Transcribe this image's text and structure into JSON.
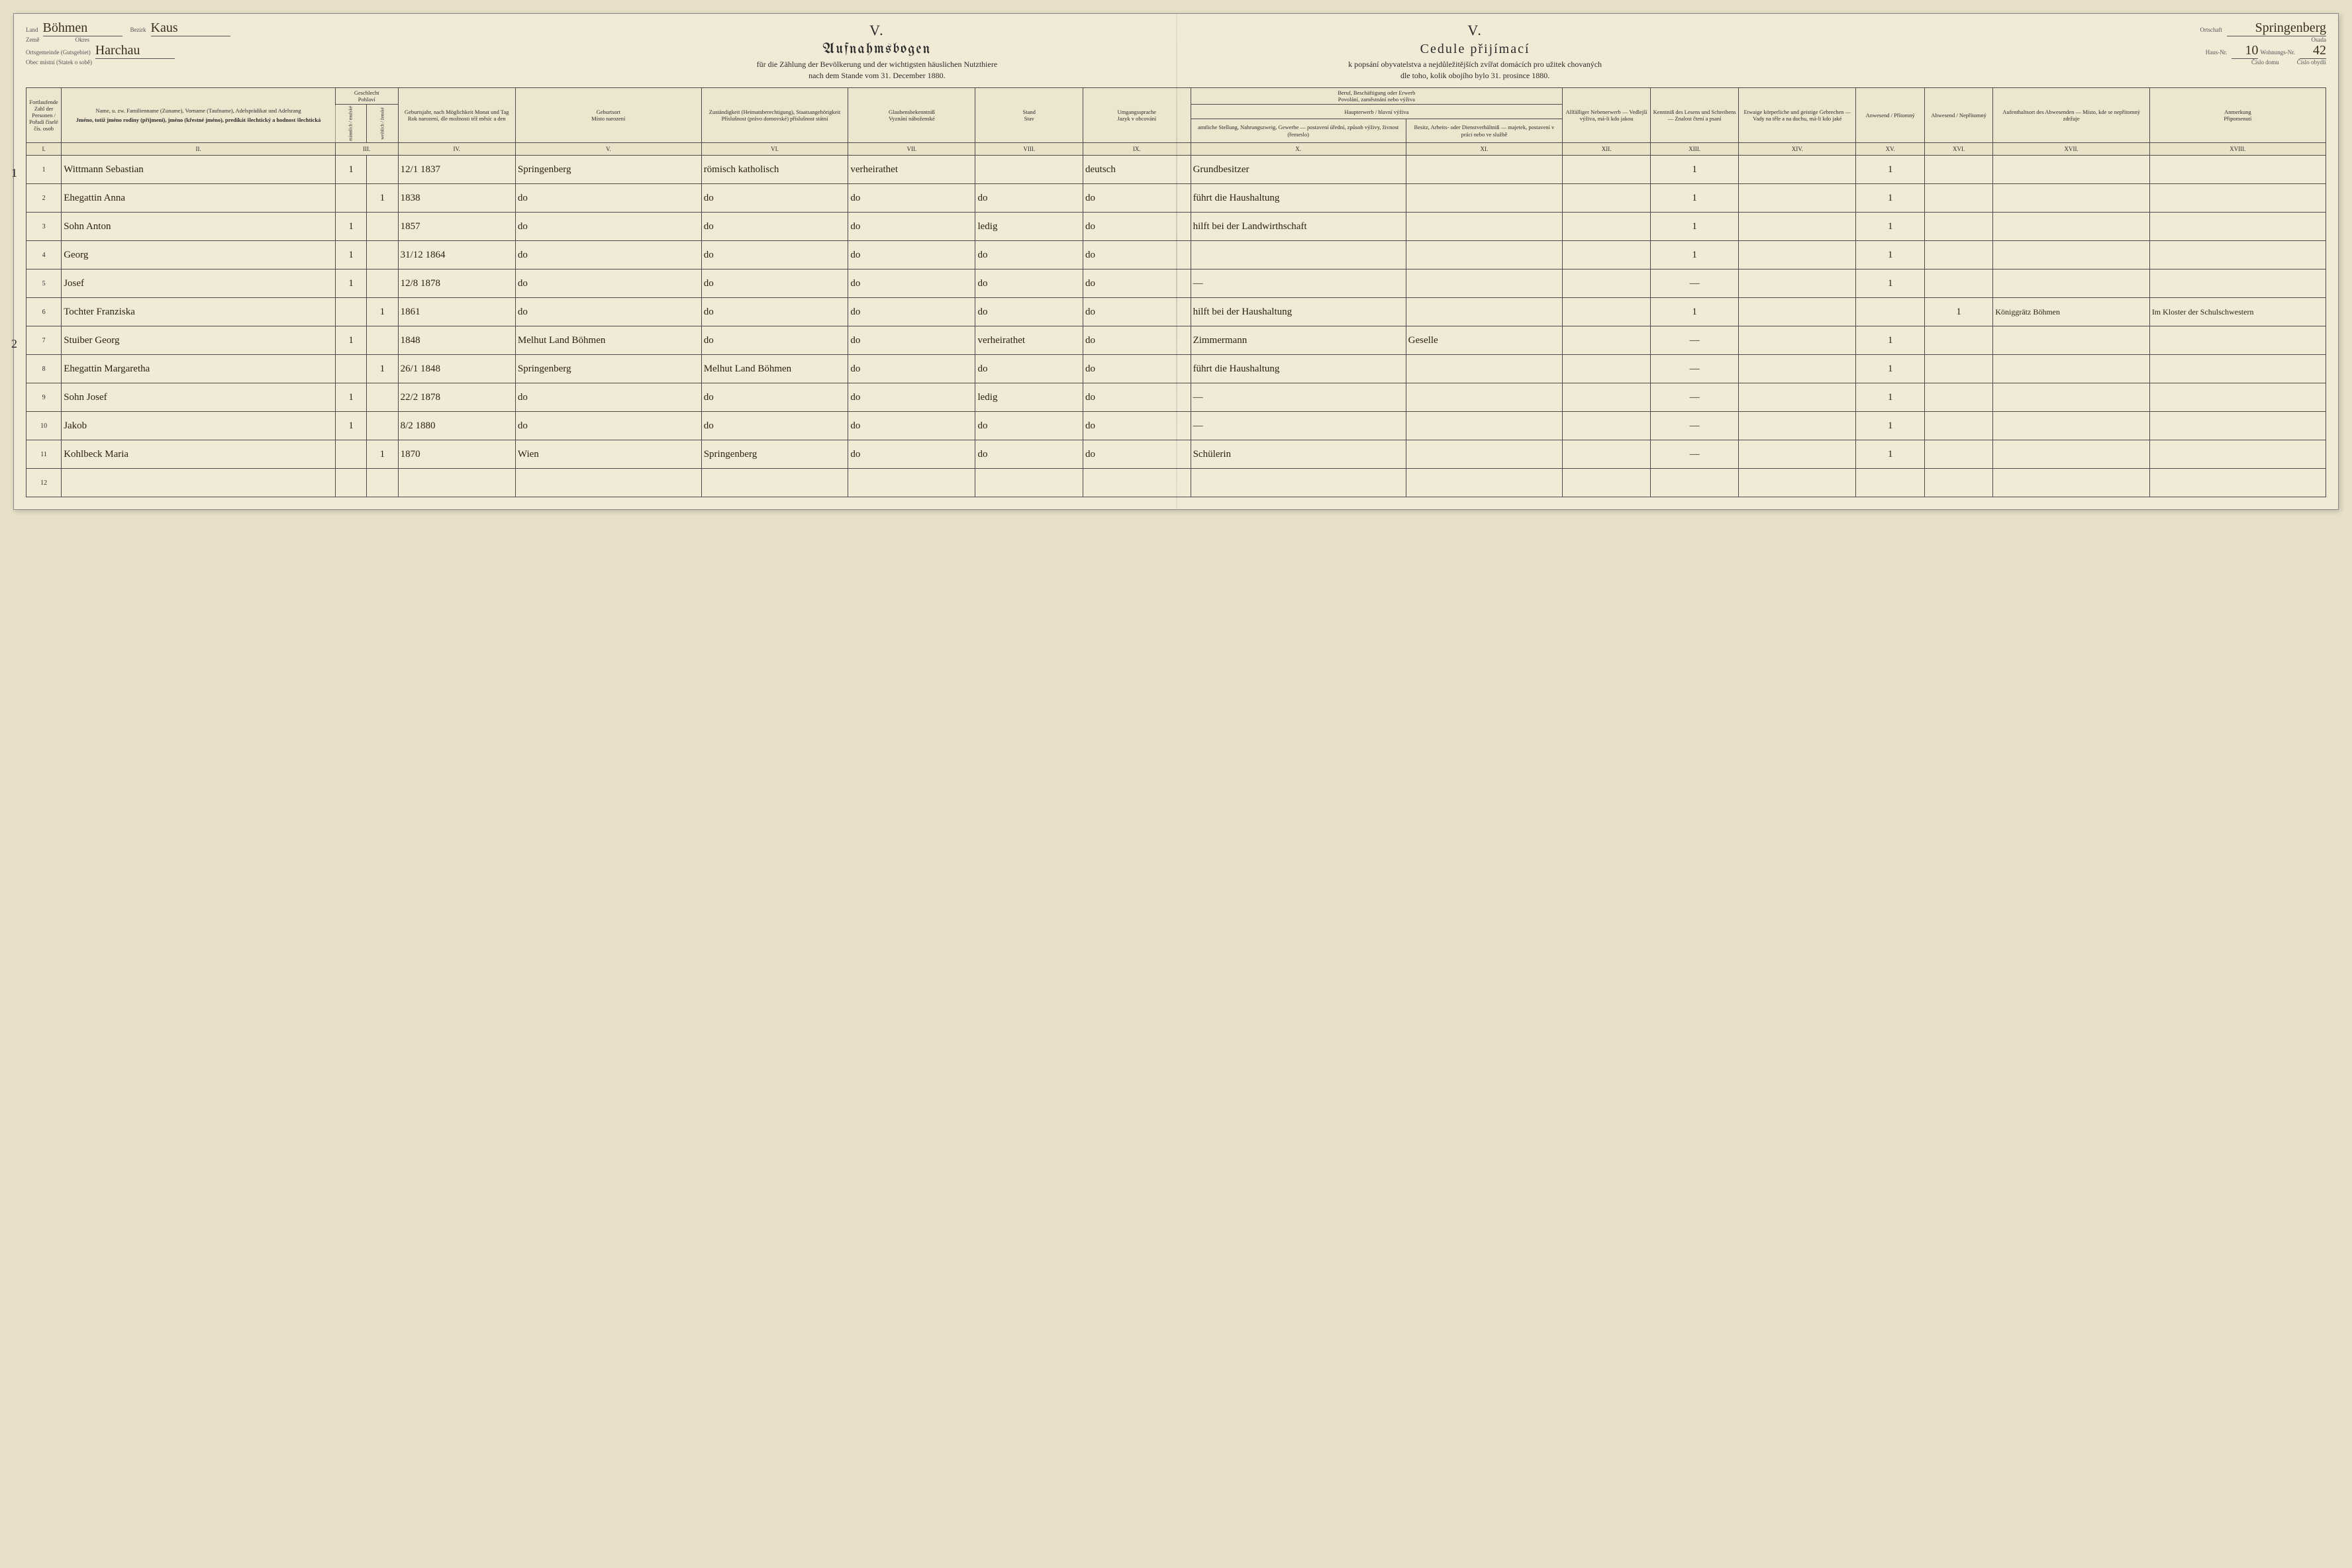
{
  "header": {
    "land_label_de": "Land",
    "land_label_cz": "Země",
    "land_value": "Böhmen",
    "bezirk_label_de": "Bezirk",
    "bezirk_label_cz": "Okres",
    "bezirk_value": "Kaus",
    "ortsgemeinde_label_de": "Ortsgemeinde (Gutsgebiet)",
    "ortsgemeinde_label_cz": "Obec místní (Statek o sobě)",
    "ortsgemeinde_value": "Harchau",
    "ortschaft_label_de": "Ortschaft",
    "ortschaft_label_cz": "Osada",
    "ortschaft_value": "Springenberg",
    "hausnr_label_de": "Haus-Nr.",
    "hausnr_label_cz": "Číslo domu",
    "hausnr_value": "10",
    "wohnnr_label_de": "Wohnungs-Nr.",
    "wohnnr_label_cz": "Číslo obydlí",
    "wohnnr_value": "42",
    "roman": "V.",
    "title_de": "Aufnahmsbogen",
    "title_cz": "Cedule přijímací",
    "subtitle_de": "für die Zählung der Bevölkerung und der wichtigsten häuslichen Nutzthiere",
    "subtitle_cz": "k popsání obyvatelstva a nejdůležitějších zvířat domácích pro užitek chovaných",
    "dateline_de": "nach dem Stande vom 31. December 1880.",
    "dateline_cz": "dle toho, kolik obojího bylo 31. prosince 1880."
  },
  "columns": {
    "head1": "Fortlaufende Zahl der Personen / Pořadí číselé čís. osob",
    "head2_de": "Name, u. zw. Familienname (Zuname), Vorname (Taufname), Adelsprädikat und Adelsrang",
    "head2_cz": "Jméno, totiž jméno rodiny (příjmení), jméno (křestné jméno), predikát šlechtický a hodnost šlechtická",
    "head3_de": "Geschlecht",
    "head3_cz": "Pohlaví",
    "head3m": "männlich / mužské",
    "head3f": "weiblich / ženské",
    "head4_de": "Geburtsjahr, nach Möglichkeit Monat und Tag",
    "head4_cz": "Rok narození, dle možnosti též měsíc a den",
    "head5_de": "Geburtsort",
    "head5_cz": "Místo narození",
    "head6_de": "Zuständigkeit (Heimatsberechtigung), Staatsangehörigkeit",
    "head6_cz": "Příslušnost (právo domovské) příslušnost státní",
    "head7_de": "Glaubensbekenntniß",
    "head7_cz": "Vyznání náboženské",
    "head8_de": "Stand",
    "head8_cz": "Stav",
    "head9_de": "Umgangssprache",
    "head9_cz": "Jazyk v obcování",
    "head10_group_de": "Beruf, Beschäftigung oder Erwerb",
    "head10_group_cz": "Povolání, zaměstnání nebo výživa",
    "head10a_de": "Haupterwerb / hlavní výživa",
    "head10_de": "amtliche Stellung, Nahrungszweig, Gewerbe — postavení úřední, způsob výživy, živnost (řemeslo)",
    "head11_de": "Besitz, Arbeits- oder Dienstverhältniß — majetek, postavení v práci nebo ve službě",
    "head12_de": "Allfälliger Nebenerwerb — Vedlejší výživa, má-li kdo jakou",
    "head13_de": "Kenntniß des Lesens und Schreibens — Znalost čtení a psaní",
    "head14_de": "Etwaige körperliche und geistige Gebrechen — Vady na těle a na duchu, má-li kdo jaké",
    "head15_de": "Anwesend / Přítomný",
    "head16_de": "Abwesend / Nepřítomný",
    "head17_de": "Aufenthaltsort des Abwesenden — Místo, kde se nepřítomný zdržuje",
    "head18_de": "Anmerkung",
    "head18_cz": "Připomenutí",
    "nums": [
      "I.",
      "II.",
      "III.",
      "IV.",
      "V.",
      "VI.",
      "VII.",
      "VIII.",
      "IX.",
      "X.",
      "XI.",
      "XII.",
      "XIII.",
      "XIV.",
      "XV.",
      "XVI.",
      "XVII.",
      "XVIII."
    ]
  },
  "rows": [
    {
      "n": "1",
      "hh": "1",
      "name": "Wittmann Sebastian",
      "m": "1",
      "f": "",
      "birth": "12/1 1837",
      "place": "Springenberg",
      "zust": "römisch katholisch",
      "rel": "verheirathet",
      "stand": "",
      "lang": "deutsch",
      "occ": "Grundbesitzer",
      "pos": "",
      "lit": "1",
      "pres": "1",
      "abs": "",
      "where": "",
      "note": ""
    },
    {
      "n": "2",
      "hh": "",
      "name": "Ehegattin Anna",
      "m": "",
      "f": "1",
      "birth": "1838",
      "place": "do",
      "zust": "do",
      "rel": "do",
      "stand": "do",
      "lang": "do",
      "occ": "führt die Haushaltung",
      "pos": "",
      "lit": "1",
      "pres": "1",
      "abs": "",
      "where": "",
      "note": ""
    },
    {
      "n": "3",
      "hh": "",
      "name": "Sohn Anton",
      "m": "1",
      "f": "",
      "birth": "1857",
      "place": "do",
      "zust": "do",
      "rel": "do",
      "stand": "ledig",
      "lang": "do",
      "occ": "hilft bei der Landwirthschaft",
      "pos": "",
      "lit": "1",
      "pres": "1",
      "abs": "",
      "where": "",
      "note": ""
    },
    {
      "n": "4",
      "hh": "",
      "name": "Georg",
      "m": "1",
      "f": "",
      "birth": "31/12 1864",
      "place": "do",
      "zust": "do",
      "rel": "do",
      "stand": "do",
      "lang": "do",
      "occ": "",
      "pos": "",
      "lit": "1",
      "pres": "1",
      "abs": "",
      "where": "",
      "note": ""
    },
    {
      "n": "5",
      "hh": "",
      "name": "Josef",
      "m": "1",
      "f": "",
      "birth": "12/8 1878",
      "place": "do",
      "zust": "do",
      "rel": "do",
      "stand": "do",
      "lang": "do",
      "occ": "—",
      "pos": "",
      "lit": "—",
      "pres": "1",
      "abs": "",
      "where": "",
      "note": ""
    },
    {
      "n": "6",
      "hh": "",
      "name": "Tochter Franziska",
      "m": "",
      "f": "1",
      "birth": "1861",
      "place": "do",
      "zust": "do",
      "rel": "do",
      "stand": "do",
      "lang": "do",
      "occ": "hilft bei der Haushaltung",
      "pos": "",
      "lit": "1",
      "pres": "",
      "abs": "1",
      "where": "Königgrätz Böhmen",
      "note": "Im Kloster der Schulschwestern"
    },
    {
      "n": "7",
      "hh": "2",
      "name": "Stuiber Georg",
      "m": "1",
      "f": "",
      "birth": "1848",
      "place": "Melhut Land Böhmen",
      "zust": "do",
      "rel": "do",
      "stand": "verheirathet",
      "lang": "do",
      "occ": "Zimmermann",
      "pos": "Geselle",
      "lit": "—",
      "pres": "1",
      "abs": "",
      "where": "",
      "note": ""
    },
    {
      "n": "8",
      "hh": "",
      "name": "Ehegattin Margaretha",
      "m": "",
      "f": "1",
      "birth": "26/1 1848",
      "place": "Springenberg",
      "zust": "Melhut Land Böhmen",
      "rel": "do",
      "stand": "do",
      "lang": "do",
      "occ": "führt die Haushaltung",
      "pos": "",
      "lit": "—",
      "pres": "1",
      "abs": "",
      "where": "",
      "note": ""
    },
    {
      "n": "9",
      "hh": "",
      "name": "Sohn Josef",
      "m": "1",
      "f": "",
      "birth": "22/2 1878",
      "place": "do",
      "zust": "do",
      "rel": "do",
      "stand": "ledig",
      "lang": "do",
      "occ": "—",
      "pos": "",
      "lit": "—",
      "pres": "1",
      "abs": "",
      "where": "",
      "note": ""
    },
    {
      "n": "10",
      "hh": "",
      "name": "Jakob",
      "m": "1",
      "f": "",
      "birth": "8/2 1880",
      "place": "do",
      "zust": "do",
      "rel": "do",
      "stand": "do",
      "lang": "do",
      "occ": "—",
      "pos": "",
      "lit": "—",
      "pres": "1",
      "abs": "",
      "where": "",
      "note": ""
    },
    {
      "n": "11",
      "hh": "",
      "name": "Kohlbeck Maria",
      "m": "",
      "f": "1",
      "birth": "1870",
      "place": "Wien",
      "zust": "Springenberg",
      "rel": "do",
      "stand": "do",
      "lang": "do",
      "occ": "Schülerin",
      "pos": "",
      "lit": "—",
      "pres": "1",
      "abs": "",
      "where": "",
      "note": ""
    },
    {
      "n": "12",
      "hh": "",
      "name": "",
      "m": "",
      "f": "",
      "birth": "",
      "place": "",
      "zust": "",
      "rel": "",
      "stand": "",
      "lang": "",
      "occ": "",
      "pos": "",
      "lit": "",
      "pres": "",
      "abs": "",
      "where": "",
      "note": ""
    }
  ],
  "style": {
    "paper_bg": "#f0ead6",
    "body_bg": "#e8e0c8",
    "ink": "#2a1f0f",
    "rule": "#4a4a4a",
    "header_bg": "#ede6ce",
    "hand_font": "Brush Script MT",
    "print_font": "Georgia",
    "fraktur_font": "Old English Text MT"
  }
}
